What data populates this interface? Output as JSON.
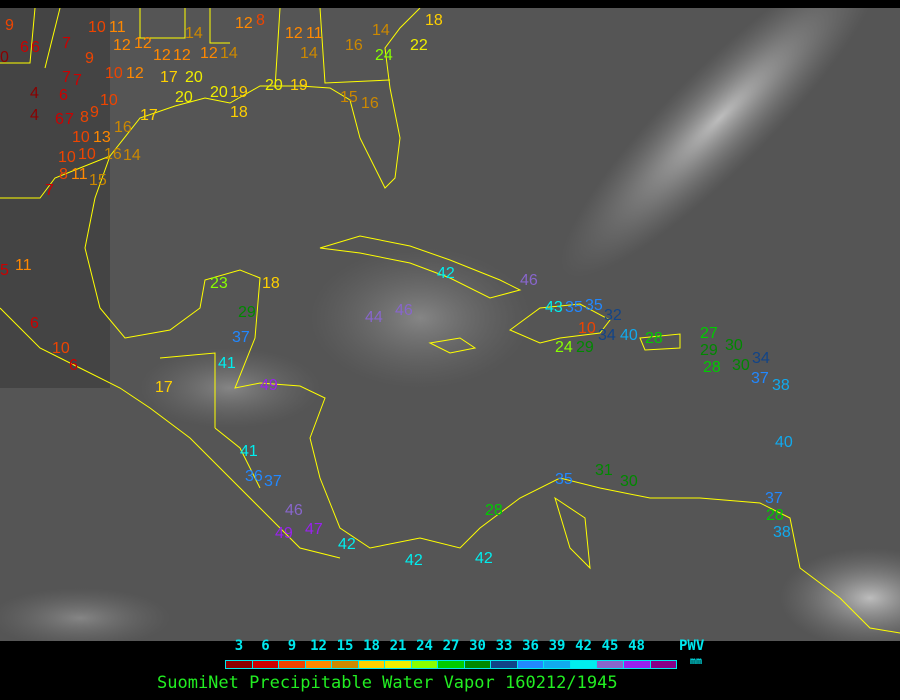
{
  "title": "SuomiNet Precipitable Water Vapor 160212/1945",
  "legend": {
    "unit_label": "PWV",
    "unit": "mm",
    "ticks": [
      "3",
      "6",
      "9",
      "12",
      "15",
      "18",
      "21",
      "24",
      "27",
      "30",
      "33",
      "36",
      "39",
      "42",
      "45",
      "48"
    ],
    "colors": [
      "#8b0000",
      "#cc0000",
      "#ee4400",
      "#ff8800",
      "#cc8800",
      "#ffd000",
      "#eeee00",
      "#88ff00",
      "#00cc00",
      "#008800",
      "#114488",
      "#2288ff",
      "#11aaee",
      "#00eeee",
      "#8866cc",
      "#9922ee",
      "#880088"
    ]
  },
  "map": {
    "coastline_color": "#ffff00",
    "stations": [
      9,
      6,
      7,
      10,
      11,
      12,
      12,
      14,
      12,
      8,
      12,
      11,
      14,
      16,
      14,
      24,
      22,
      18,
      0,
      6,
      7,
      9,
      10,
      12,
      12,
      12,
      17,
      20,
      12,
      14,
      4,
      6,
      7,
      10,
      20,
      20,
      19,
      20,
      19,
      18,
      15,
      16,
      4,
      6,
      7,
      8,
      9,
      10,
      13,
      16,
      17,
      10,
      16,
      14,
      10,
      11,
      8,
      15,
      7,
      11,
      5,
      6,
      10,
      6,
      17,
      23,
      18,
      29,
      37,
      41,
      49,
      42,
      46,
      44,
      46,
      43,
      35,
      35,
      32,
      10,
      24,
      29,
      34,
      40,
      28,
      29,
      27,
      28,
      30,
      34,
      30,
      37,
      38,
      40,
      41,
      36,
      37,
      46,
      49,
      47,
      42,
      42,
      42,
      28,
      35,
      31,
      30,
      28,
      37,
      38
    ]
  }
}
